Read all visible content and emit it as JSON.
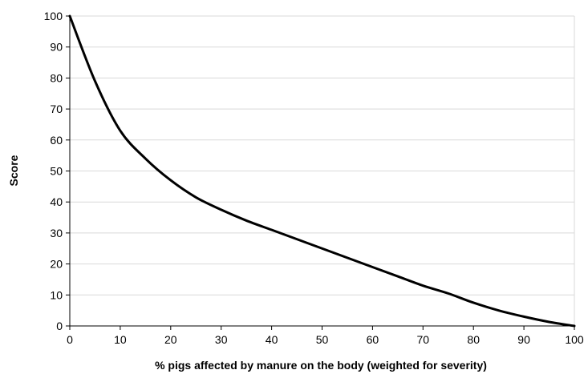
{
  "chart_data": {
    "type": "line",
    "title": "",
    "xlabel": "% pigs affected by manure on the body (weighted for severity)",
    "ylabel": "Score",
    "xlim": [
      0,
      100
    ],
    "ylim": [
      0,
      100
    ],
    "xticks": [
      0,
      10,
      20,
      30,
      40,
      50,
      60,
      70,
      80,
      90,
      100
    ],
    "yticks": [
      0,
      10,
      20,
      30,
      40,
      50,
      60,
      70,
      80,
      90,
      100
    ],
    "grid": "horizontal",
    "legend": "none",
    "series_color": "#000000",
    "series": [
      {
        "x": [
          0,
          5,
          10,
          15,
          20,
          25,
          30,
          35,
          40,
          45,
          50,
          55,
          60,
          65,
          70,
          75,
          80,
          85,
          90,
          95,
          100
        ],
        "y": [
          100,
          79,
          63,
          54,
          47,
          41.5,
          37.5,
          34,
          31,
          28,
          25,
          22,
          19,
          16,
          13,
          10.5,
          7.5,
          5,
          3,
          1.3,
          0
        ]
      }
    ]
  }
}
